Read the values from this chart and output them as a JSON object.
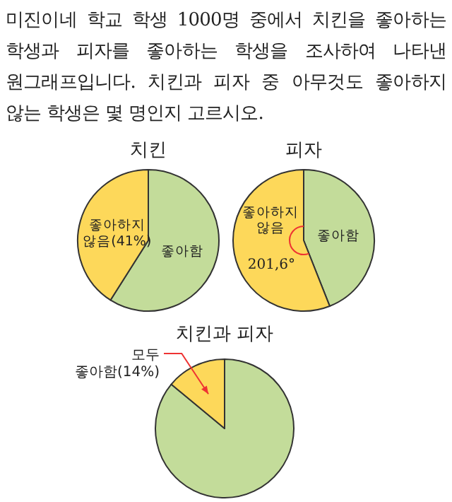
{
  "chart_data": [
    {
      "type": "other",
      "annotations": [
        "미진이네 학교 학생 1000명 중에서 치킨을 좋아하는 학생과 피자를 좋아하는 학생을 조사하여 나타낸 원그래프입니다. 치킨과 피자 중 아무것도 좋아하지 않는 학생은 몇 명인지 고르시오."
      ]
    },
    {
      "type": "pie",
      "title": "치킨",
      "categories": [
        "좋아함",
        "좋아하지 않음(41%)"
      ],
      "values": [
        59,
        41
      ],
      "colors": [
        "#c3dc9a",
        "#fdd85a"
      ]
    },
    {
      "type": "pie",
      "title": "피자",
      "categories": [
        "좋아함",
        "좋아하지 않음"
      ],
      "values": [
        44,
        56
      ],
      "colors": [
        "#c3dc9a",
        "#fdd85a"
      ],
      "annotations": [
        "201,6°"
      ]
    },
    {
      "type": "pie",
      "title": "치킨과 피자",
      "categories": [
        null,
        "모두 좋아함(14%)"
      ],
      "values": [
        86,
        14
      ],
      "colors": [
        "#c3dc9a",
        "#fdd85a"
      ]
    }
  ]
}
